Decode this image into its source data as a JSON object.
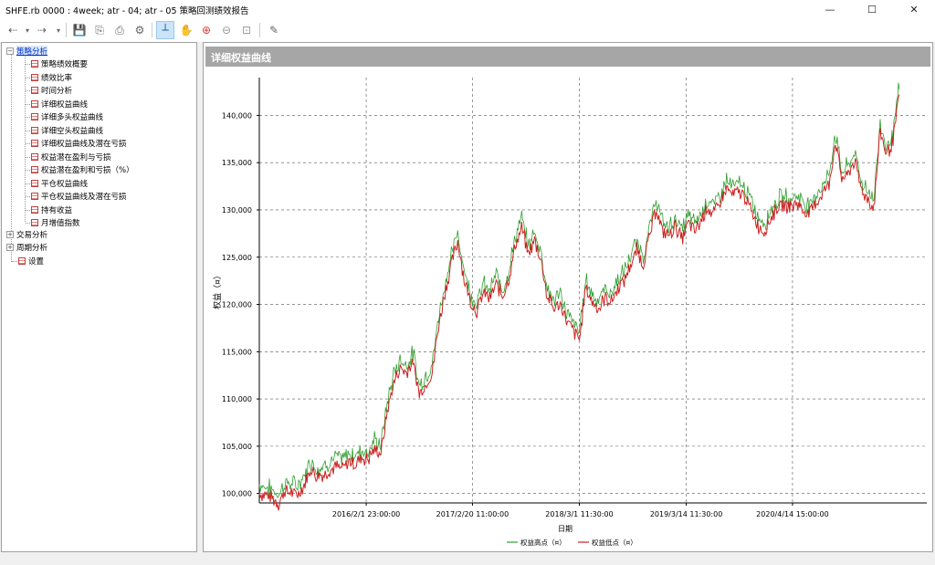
{
  "window": {
    "title": "SHFE.rb 0000 : 4week;  atr - 04; atr - 05 策略回测绩效报告",
    "minimize": "—",
    "maximize": "☐",
    "close": "✕"
  },
  "toolbar": {
    "back": "⇠",
    "back_dropdown": "▾",
    "forward": "⇢",
    "forward_dropdown": "▾",
    "save": "💾",
    "export": "⎘",
    "print": "⎙",
    "settings": "⚙",
    "crosshair": "┴",
    "pan": "✋",
    "zoom_in": "⊕",
    "zoom_out": "⊖",
    "zoom_fit": "⊡",
    "pen": "✎"
  },
  "tree": {
    "root_expander": "−",
    "root_label": "策略分析",
    "children": [
      "策略绩效概要",
      "绩效比率",
      "时间分析",
      "详细权益曲线",
      "详细多头权益曲线",
      "详细空头权益曲线",
      "详细权益曲线及潜在亏损",
      "权益潜在盈利与亏损",
      "权益潜在盈利和亏损（%）",
      "平仓权益曲线",
      "平仓权益曲线及潜在亏损",
      "持有收益",
      "月增值指数"
    ],
    "groups": [
      {
        "expander": "+",
        "label": "交易分析"
      },
      {
        "expander": "+",
        "label": "周期分析"
      }
    ],
    "settings_label": "设置"
  },
  "panel": {
    "header": "详细权益曲线"
  },
  "chart_data": {
    "type": "line",
    "ylabel": "权益（¤）",
    "xlabel": "日期",
    "ylim": [
      99000,
      144000
    ],
    "yticks": [
      "100,000",
      "105,000",
      "110,000",
      "115,000",
      "120,000",
      "125,000",
      "130,000",
      "135,000",
      "140,000"
    ],
    "ytick_values": [
      100000,
      105000,
      110000,
      115000,
      120000,
      125000,
      130000,
      135000,
      140000
    ],
    "xlim": [
      0,
      100
    ],
    "xticks": [
      "2016/2/1 23:00:00",
      "2017/2/20 11:00:00",
      "2018/3/1 11:30:00",
      "2019/3/14 11:30:00",
      "2020/4/14 15:00:00"
    ],
    "xtick_values": [
      16.7,
      33.3,
      50.0,
      66.7,
      83.3
    ],
    "grid": true,
    "legend_position": "bottom-center",
    "series": [
      {
        "name": "权益高点（¤）",
        "color": "#2e9e2e"
      },
      {
        "name": "权益低点（¤）",
        "color": "#cc2020"
      }
    ],
    "keypoints": [
      [
        0,
        100300
      ],
      [
        2,
        99800
      ],
      [
        3,
        99200
      ],
      [
        4,
        100500
      ],
      [
        6,
        100200
      ],
      [
        7,
        101200
      ],
      [
        8,
        102800
      ],
      [
        9,
        102000
      ],
      [
        10,
        102300
      ],
      [
        11,
        102700
      ],
      [
        12,
        103200
      ],
      [
        13,
        102900
      ],
      [
        14,
        103600
      ],
      [
        15,
        103400
      ],
      [
        16,
        104000
      ],
      [
        17,
        103800
      ],
      [
        18,
        105000
      ],
      [
        19,
        104500
      ],
      [
        20,
        109000
      ],
      [
        21,
        112000
      ],
      [
        22,
        113500
      ],
      [
        23,
        113000
      ],
      [
        24,
        114200
      ],
      [
        25,
        110800
      ],
      [
        26,
        111800
      ],
      [
        27,
        113000
      ],
      [
        28,
        118000
      ],
      [
        29,
        121500
      ],
      [
        30,
        124500
      ],
      [
        31,
        127000
      ],
      [
        32,
        123000
      ],
      [
        33,
        120500
      ],
      [
        34,
        119500
      ],
      [
        35,
        121500
      ],
      [
        36,
        120800
      ],
      [
        37,
        122500
      ],
      [
        38,
        121000
      ],
      [
        39,
        123000
      ],
      [
        40,
        126500
      ],
      [
        41,
        128500
      ],
      [
        42,
        125500
      ],
      [
        43,
        127000
      ],
      [
        44,
        125000
      ],
      [
        45,
        121000
      ],
      [
        46,
        119800
      ],
      [
        47,
        120500
      ],
      [
        48,
        118500
      ],
      [
        49,
        117500
      ],
      [
        50,
        116500
      ],
      [
        51,
        122000
      ],
      [
        52,
        120500
      ],
      [
        53,
        119800
      ],
      [
        54,
        121000
      ],
      [
        55,
        120500
      ],
      [
        56,
        122000
      ],
      [
        57,
        122800
      ],
      [
        58,
        124500
      ],
      [
        59,
        126000
      ],
      [
        60,
        124500
      ],
      [
        61,
        127500
      ],
      [
        62,
        130500
      ],
      [
        63,
        128000
      ],
      [
        64,
        127500
      ],
      [
        65,
        128500
      ],
      [
        66,
        127200
      ],
      [
        67,
        128800
      ],
      [
        68,
        128000
      ],
      [
        69,
        129000
      ],
      [
        70,
        130500
      ],
      [
        71,
        129800
      ],
      [
        72,
        131000
      ],
      [
        73,
        132500
      ],
      [
        74,
        131800
      ],
      [
        75,
        132200
      ],
      [
        76,
        131500
      ],
      [
        77,
        130000
      ],
      [
        78,
        128500
      ],
      [
        79,
        128000
      ],
      [
        80,
        129500
      ],
      [
        81,
        130500
      ],
      [
        82,
        130800
      ],
      [
        83,
        130500
      ],
      [
        84,
        131000
      ],
      [
        85,
        130200
      ],
      [
        86,
        129800
      ],
      [
        87,
        131000
      ],
      [
        88,
        132000
      ],
      [
        89,
        133000
      ],
      [
        90,
        137500
      ],
      [
        91,
        133500
      ],
      [
        92,
        134000
      ],
      [
        93,
        135500
      ],
      [
        94,
        132500
      ],
      [
        95,
        131500
      ],
      [
        96,
        130500
      ],
      [
        97,
        138500
      ],
      [
        98,
        136000
      ],
      [
        99,
        137500
      ],
      [
        100,
        142500
      ]
    ]
  }
}
